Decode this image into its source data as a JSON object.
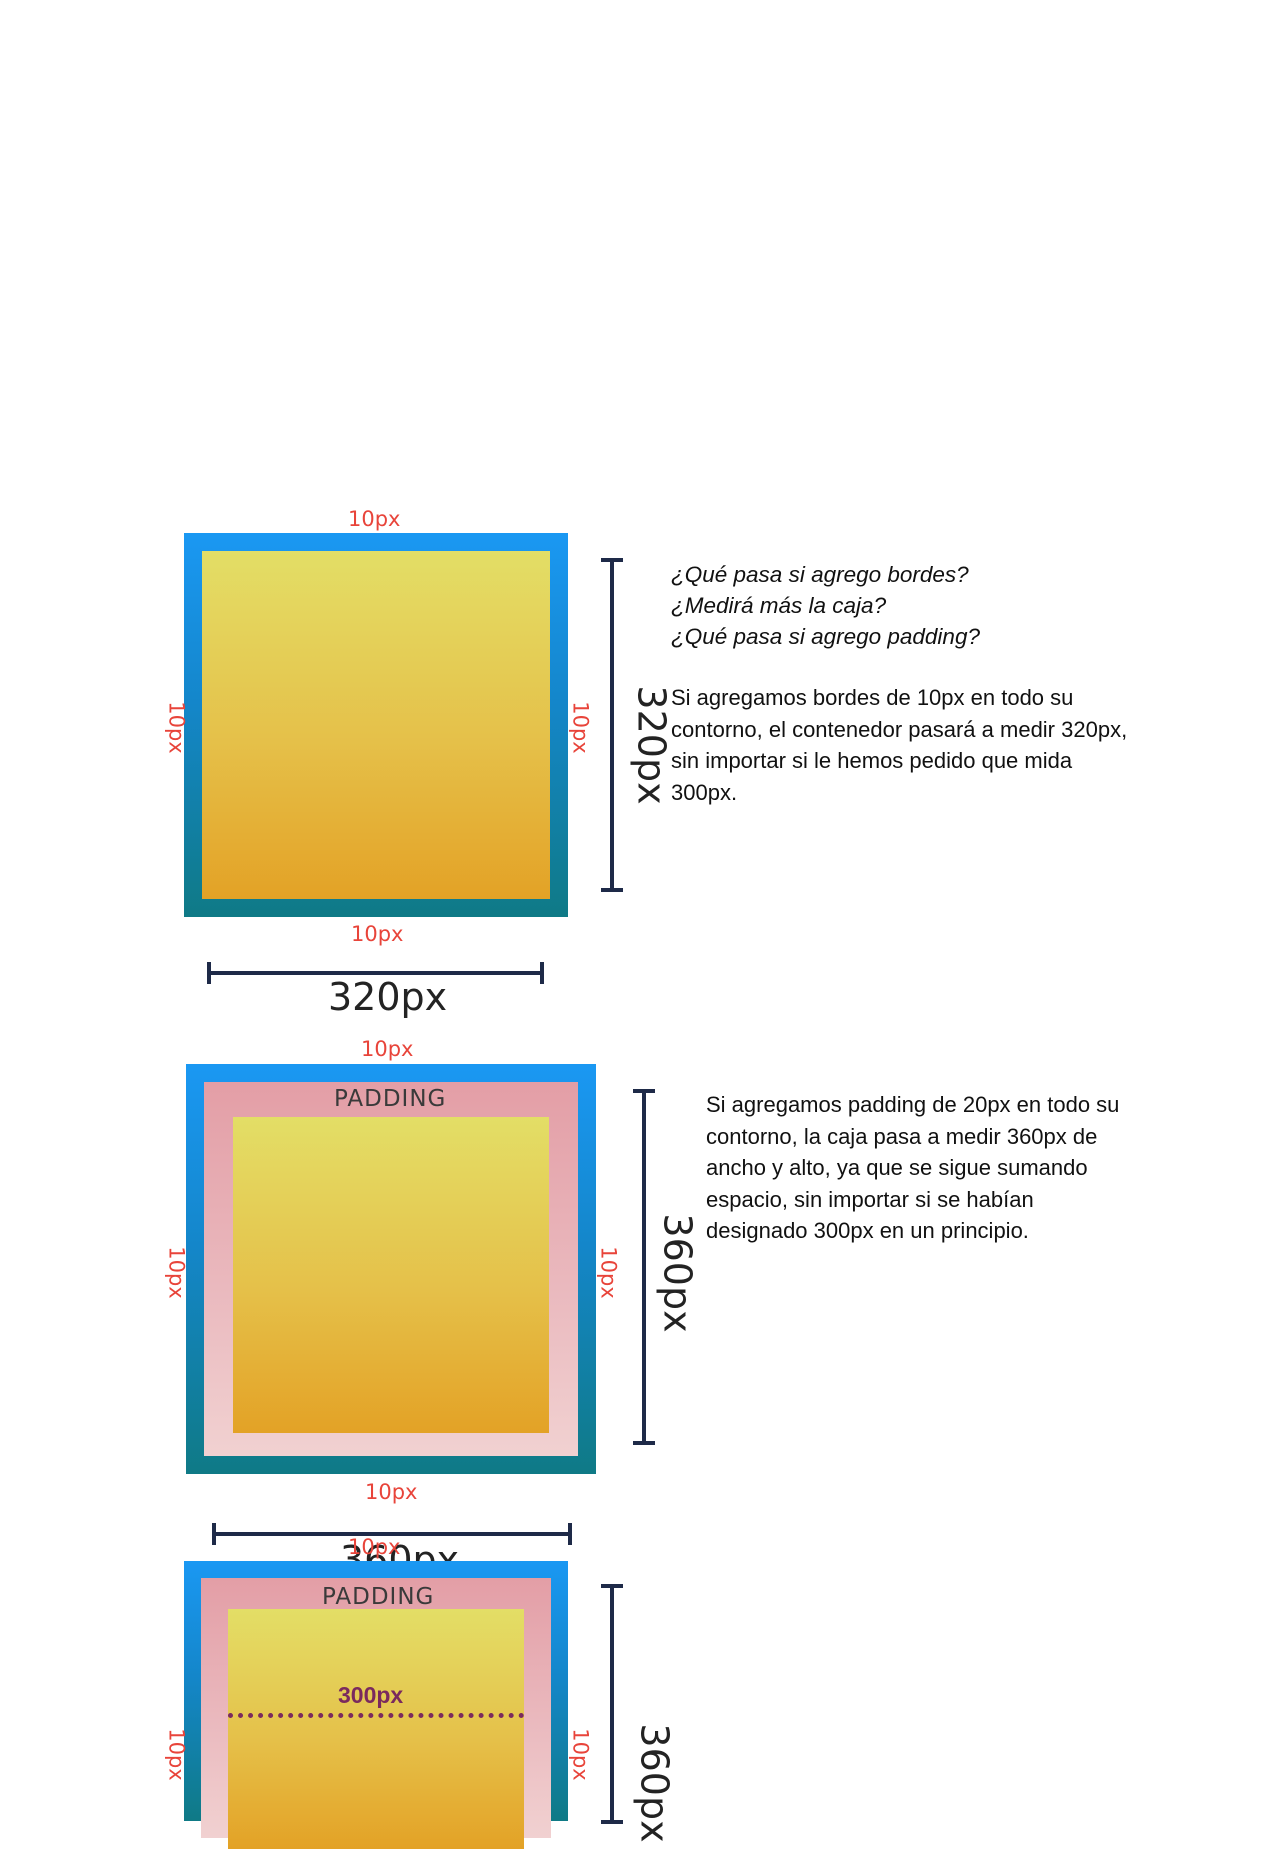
{
  "section1": {
    "border_top": "10px",
    "border_left": "10px",
    "border_right": "10px",
    "border_bottom": "10px",
    "height_label": "320px",
    "width_label": "320px",
    "questions": [
      "¿Qué pasa si agrego bordes?",
      "¿Medirá más la caja?",
      "¿Qué pasa si agrego padding?"
    ],
    "explanation": "Si agregamos bordes de 10px en todo su contorno, el contenedor pasará a medir 320px, sin importar si le hemos pedido que mida 300px."
  },
  "section2": {
    "border_top": "10px",
    "border_left": "10px",
    "border_right": "10px",
    "border_bottom": "10px",
    "padding_label": "PADDING",
    "height_label": "360px",
    "width_label": "360px",
    "explanation": "Si agregamos padding de 20px en todo su contorno, la caja pasa a medir 360px de ancho y alto, ya que se sigue sumando espacio, sin importar si se habían designado 300px en un principio."
  },
  "section3": {
    "border_top": "10px",
    "border_left": "10px",
    "border_right": "10px",
    "padding_label": "PADDING",
    "content_width_label": "300px",
    "height_label": "360px"
  },
  "colors": {
    "border_blue": "#1a98f3",
    "border_teal": "#0f7a86",
    "padding_pink": "#e39ea6",
    "content_yellow": "#e3de66",
    "content_orange": "#e3a226",
    "label_red": "#e8443a",
    "measure_navy": "#1e2a48",
    "content_label_purple": "#7a2a5e"
  }
}
